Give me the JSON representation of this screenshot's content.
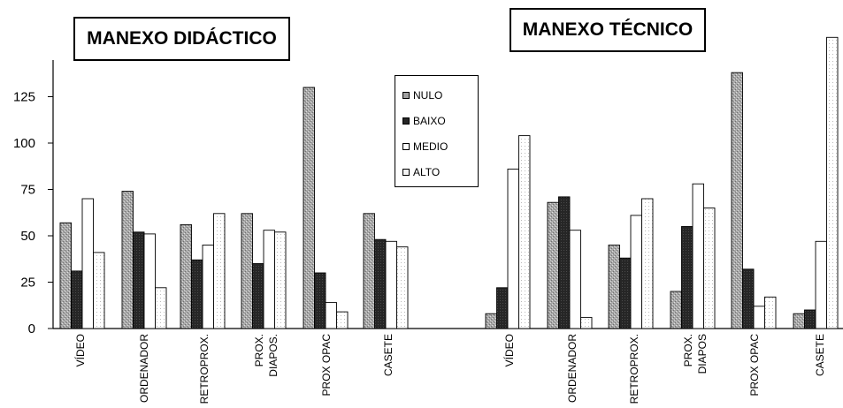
{
  "chart_data": {
    "type": "bar",
    "y_ticks": [
      "0",
      "25",
      "50",
      "75",
      "100",
      "125"
    ],
    "ylim": [
      0,
      150
    ],
    "legend": {
      "placement": "center-top",
      "items": [
        {
          "label": "NULO",
          "color": "#9a9a9a"
        },
        {
          "label": "BAIXO",
          "color": "#2b2b2b"
        },
        {
          "label": "MEDIO",
          "color": "#ffffff"
        },
        {
          "label": "ALTO",
          "color": "#ffffff"
        }
      ]
    },
    "charts": [
      {
        "title": "MANEXO DIDÁCTICO",
        "categories": [
          {
            "label_lines": [
              "VÍDEO"
            ]
          },
          {
            "label_lines": [
              "ORDENADOR"
            ]
          },
          {
            "label_lines": [
              "RETROPROX."
            ]
          },
          {
            "label_lines": [
              "PROX.",
              "DIAPOS."
            ]
          },
          {
            "label_lines": [
              "PROX OPAC"
            ]
          },
          {
            "label_lines": [
              "CASETE"
            ]
          }
        ],
        "series": [
          {
            "name": "NULO",
            "values": [
              57,
              74,
              56,
              62,
              130,
              62
            ]
          },
          {
            "name": "BAIXO",
            "values": [
              31,
              52,
              37,
              35,
              30,
              48
            ]
          },
          {
            "name": "MEDIO",
            "values": [
              70,
              51,
              45,
              53,
              14,
              47
            ]
          },
          {
            "name": "ALTO",
            "values": [
              41,
              22,
              62,
              52,
              9,
              44
            ]
          }
        ]
      },
      {
        "title": "MANEXO TÉCNICO",
        "categories": [
          {
            "label_lines": [
              "VÍDEO"
            ]
          },
          {
            "label_lines": [
              "ORDENADOR"
            ]
          },
          {
            "label_lines": [
              "RETROPROX."
            ]
          },
          {
            "label_lines": [
              "PROX.",
              "DIAPOS"
            ]
          },
          {
            "label_lines": [
              "PROX OPAC"
            ]
          },
          {
            "label_lines": [
              "CASETE"
            ]
          }
        ],
        "series": [
          {
            "name": "NULO",
            "values": [
              8,
              68,
              45,
              20,
              138,
              8
            ]
          },
          {
            "name": "BAIXO",
            "values": [
              22,
              71,
              38,
              55,
              32,
              10
            ]
          },
          {
            "name": "MEDIO",
            "values": [
              86,
              53,
              61,
              78,
              12,
              47
            ]
          },
          {
            "name": "ALTO",
            "values": [
              104,
              6,
              70,
              65,
              17,
              157
            ]
          }
        ]
      }
    ]
  }
}
